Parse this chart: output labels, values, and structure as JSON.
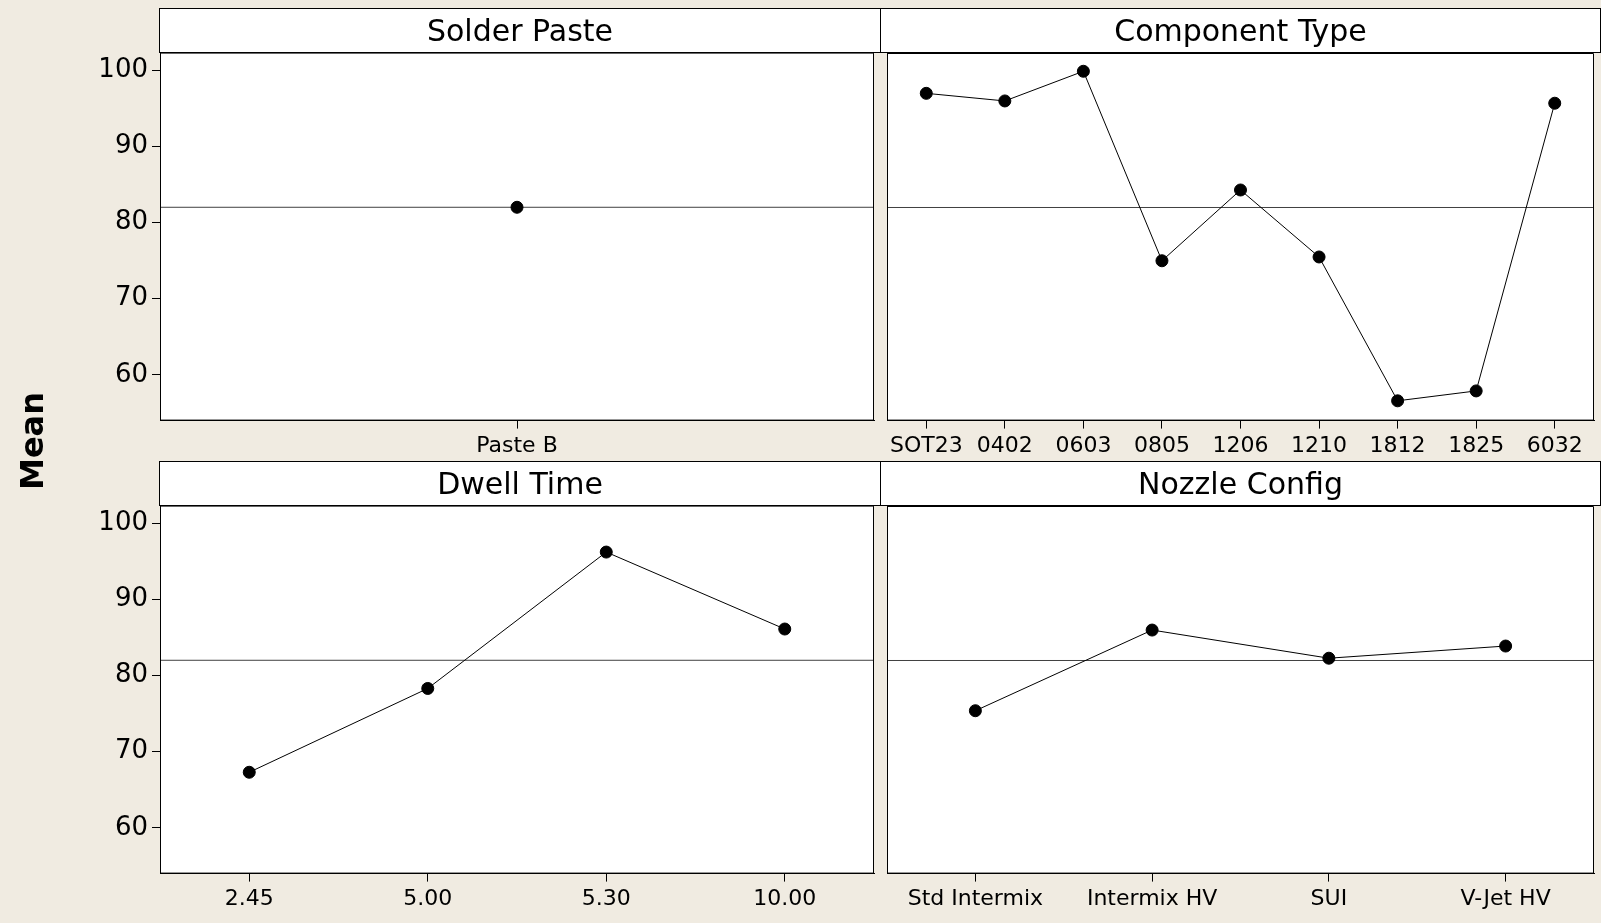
{
  "chart_data": [
    {
      "type": "line",
      "title": "Solder Paste",
      "ylabel": "Mean",
      "categories": [
        "Paste B"
      ],
      "values": [
        82.0
      ],
      "color": "#000000",
      "ylim": [
        54,
        102.3
      ],
      "yticks": [
        60,
        70,
        80,
        90,
        100
      ],
      "ref_lines": [
        {
          "axis": "y",
          "value": 82,
          "color": "#404040"
        }
      ],
      "marker": "circle",
      "grid": false,
      "legend": false
    },
    {
      "type": "line",
      "title": "Component Type",
      "categories": [
        "SOT23",
        "0402",
        "0603",
        "0805",
        "1206",
        "1210",
        "1812",
        "1825",
        "6032"
      ],
      "values": [
        97.0,
        96.0,
        99.9,
        75.0,
        84.3,
        75.5,
        56.6,
        57.9,
        95.7
      ],
      "color": "#000000",
      "ylim": [
        54,
        102.3
      ],
      "yticks": [
        60,
        70,
        80,
        90,
        100
      ],
      "tick_labels": "x",
      "ref_lines": [
        {
          "axis": "y",
          "value": 82,
          "color": "#404040"
        }
      ],
      "marker": "circle",
      "grid": false,
      "legend": false
    },
    {
      "type": "line",
      "title": "Dwell Time",
      "categories": [
        "2.45",
        "5.00",
        "5.30",
        "10.00"
      ],
      "values": [
        67.3,
        78.3,
        96.2,
        86.1
      ],
      "color": "#000000",
      "ylim": [
        54,
        102.3
      ],
      "yticks": [
        60,
        70,
        80,
        90,
        100
      ],
      "ref_lines": [
        {
          "axis": "y",
          "value": 82,
          "color": "#404040"
        }
      ],
      "marker": "circle",
      "grid": false,
      "legend": false
    },
    {
      "type": "line",
      "title": "Nozzle Config",
      "categories": [
        "Std Intermix",
        "Intermix HV",
        "SUI",
        "V-Jet HV"
      ],
      "values": [
        75.4,
        86.0,
        82.3,
        83.9
      ],
      "color": "#000000",
      "ylim": [
        54,
        102.3
      ],
      "yticks": [
        60,
        70,
        80,
        90,
        100
      ],
      "tick_labels": "x",
      "ref_lines": [
        {
          "axis": "y",
          "value": 82,
          "color": "#404040"
        }
      ],
      "marker": "circle",
      "grid": false,
      "legend": false
    }
  ]
}
